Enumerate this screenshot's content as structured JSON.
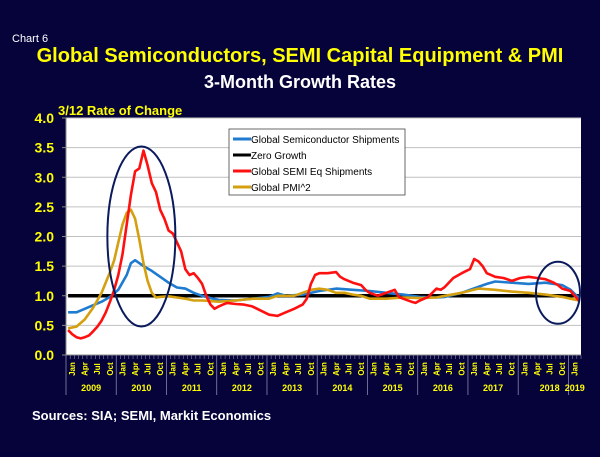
{
  "chart_label": "Chart 6",
  "source_note": "Sources: SIA; SEMI, Markit Economics",
  "chart_data": {
    "type": "line",
    "title": "Global Semiconductors, SEMI Capital Equipment & PMI",
    "subtitle": "3-Month Growth Rates",
    "ylabel": "3/12 Rate of Change",
    "xlabel": "",
    "ylim": [
      0,
      4.0
    ],
    "yticks": [
      "0.0",
      "0.5",
      "1.0",
      "1.5",
      "2.0",
      "2.5",
      "3.0",
      "3.5",
      "4.0"
    ],
    "grid": true,
    "legend_position": "top-center",
    "x_start": "Jan 2009",
    "x_end": "Mar 2019",
    "month_tick_labels": [
      "Jan",
      "Apr",
      "Jul",
      "Oct"
    ],
    "year_labels": [
      "2009",
      "2010",
      "2011",
      "2012",
      "2013",
      "2014",
      "2015",
      "2016",
      "2017",
      "2018",
      "2019"
    ],
    "series": [
      {
        "name": "Global Semiconductor Shipments",
        "color": "#1f7bd0",
        "points": [
          [
            0,
            0.72
          ],
          [
            2,
            0.72
          ],
          [
            4,
            0.78
          ],
          [
            6,
            0.84
          ],
          [
            8,
            0.9
          ],
          [
            10,
            0.98
          ],
          [
            12,
            1.1
          ],
          [
            14,
            1.35
          ],
          [
            15,
            1.55
          ],
          [
            16,
            1.6
          ],
          [
            18,
            1.5
          ],
          [
            20,
            1.42
          ],
          [
            22,
            1.32
          ],
          [
            24,
            1.22
          ],
          [
            26,
            1.14
          ],
          [
            28,
            1.12
          ],
          [
            30,
            1.05
          ],
          [
            32,
            1.0
          ],
          [
            34,
            0.96
          ],
          [
            36,
            0.93
          ],
          [
            40,
            0.92
          ],
          [
            44,
            0.95
          ],
          [
            48,
            0.98
          ],
          [
            50,
            1.04
          ],
          [
            52,
            1.0
          ],
          [
            56,
            1.02
          ],
          [
            60,
            1.08
          ],
          [
            64,
            1.12
          ],
          [
            68,
            1.1
          ],
          [
            72,
            1.08
          ],
          [
            76,
            1.05
          ],
          [
            80,
            1.02
          ],
          [
            84,
            0.98
          ],
          [
            88,
            0.97
          ],
          [
            90,
            0.98
          ],
          [
            94,
            1.05
          ],
          [
            96,
            1.1
          ],
          [
            100,
            1.2
          ],
          [
            102,
            1.24
          ],
          [
            106,
            1.22
          ],
          [
            110,
            1.2
          ],
          [
            114,
            1.22
          ],
          [
            118,
            1.18
          ],
          [
            120,
            1.1
          ],
          [
            122,
            0.96
          ]
        ]
      },
      {
        "name": "Zero Growth",
        "color": "#000000",
        "points": [
          [
            0,
            1.0
          ],
          [
            122,
            1.0
          ]
        ]
      },
      {
        "name": "Global SEMI Eq Shipments",
        "color": "#ff1010",
        "points": [
          [
            0,
            0.42
          ],
          [
            1,
            0.35
          ],
          [
            2,
            0.3
          ],
          [
            3,
            0.28
          ],
          [
            4,
            0.3
          ],
          [
            5,
            0.33
          ],
          [
            6,
            0.4
          ],
          [
            7,
            0.48
          ],
          [
            8,
            0.58
          ],
          [
            9,
            0.72
          ],
          [
            10,
            0.9
          ],
          [
            11,
            1.1
          ],
          [
            12,
            1.35
          ],
          [
            13,
            1.7
          ],
          [
            14,
            2.2
          ],
          [
            15,
            2.7
          ],
          [
            16,
            3.1
          ],
          [
            17,
            3.15
          ],
          [
            18,
            3.45
          ],
          [
            19,
            3.2
          ],
          [
            20,
            2.9
          ],
          [
            21,
            2.75
          ],
          [
            22,
            2.45
          ],
          [
            23,
            2.3
          ],
          [
            24,
            2.1
          ],
          [
            25,
            2.05
          ],
          [
            26,
            1.9
          ],
          [
            27,
            1.75
          ],
          [
            28,
            1.45
          ],
          [
            29,
            1.35
          ],
          [
            30,
            1.38
          ],
          [
            31,
            1.3
          ],
          [
            32,
            1.2
          ],
          [
            33,
            1.0
          ],
          [
            34,
            0.85
          ],
          [
            35,
            0.78
          ],
          [
            36,
            0.82
          ],
          [
            37,
            0.85
          ],
          [
            38,
            0.88
          ],
          [
            40,
            0.86
          ],
          [
            42,
            0.85
          ],
          [
            44,
            0.82
          ],
          [
            46,
            0.75
          ],
          [
            48,
            0.68
          ],
          [
            50,
            0.66
          ],
          [
            52,
            0.72
          ],
          [
            54,
            0.78
          ],
          [
            56,
            0.85
          ],
          [
            57,
            0.95
          ],
          [
            58,
            1.2
          ],
          [
            59,
            1.35
          ],
          [
            60,
            1.38
          ],
          [
            62,
            1.38
          ],
          [
            64,
            1.4
          ],
          [
            65,
            1.32
          ],
          [
            66,
            1.28
          ],
          [
            68,
            1.22
          ],
          [
            70,
            1.18
          ],
          [
            71,
            1.1
          ],
          [
            72,
            1.05
          ],
          [
            74,
            1.0
          ],
          [
            76,
            1.05
          ],
          [
            78,
            1.1
          ],
          [
            79,
            0.98
          ],
          [
            80,
            0.95
          ],
          [
            82,
            0.9
          ],
          [
            83,
            0.88
          ],
          [
            84,
            0.92
          ],
          [
            86,
            0.98
          ],
          [
            88,
            1.12
          ],
          [
            89,
            1.1
          ],
          [
            90,
            1.15
          ],
          [
            92,
            1.3
          ],
          [
            94,
            1.38
          ],
          [
            96,
            1.45
          ],
          [
            97,
            1.62
          ],
          [
            98,
            1.58
          ],
          [
            99,
            1.5
          ],
          [
            100,
            1.38
          ],
          [
            102,
            1.32
          ],
          [
            104,
            1.3
          ],
          [
            106,
            1.25
          ],
          [
            108,
            1.3
          ],
          [
            110,
            1.32
          ],
          [
            112,
            1.3
          ],
          [
            114,
            1.28
          ],
          [
            116,
            1.22
          ],
          [
            117,
            1.18
          ],
          [
            118,
            1.12
          ],
          [
            120,
            1.08
          ],
          [
            121,
            1.0
          ],
          [
            122,
            0.92
          ]
        ]
      },
      {
        "name": "Global PMI^2",
        "color": "#d4a010",
        "points": [
          [
            0,
            0.45
          ],
          [
            2,
            0.48
          ],
          [
            4,
            0.6
          ],
          [
            6,
            0.8
          ],
          [
            8,
            1.05
          ],
          [
            10,
            1.4
          ],
          [
            11,
            1.6
          ],
          [
            12,
            1.9
          ],
          [
            13,
            2.2
          ],
          [
            14,
            2.4
          ],
          [
            15,
            2.45
          ],
          [
            16,
            2.3
          ],
          [
            17,
            1.95
          ],
          [
            18,
            1.55
          ],
          [
            19,
            1.25
          ],
          [
            20,
            1.05
          ],
          [
            21,
            0.97
          ],
          [
            22,
            0.98
          ],
          [
            24,
            0.99
          ],
          [
            26,
            0.97
          ],
          [
            28,
            0.95
          ],
          [
            30,
            0.92
          ],
          [
            32,
            0.92
          ],
          [
            36,
            0.9
          ],
          [
            40,
            0.92
          ],
          [
            44,
            0.95
          ],
          [
            48,
            0.95
          ],
          [
            50,
            1.0
          ],
          [
            54,
            1.0
          ],
          [
            56,
            1.05
          ],
          [
            58,
            1.1
          ],
          [
            60,
            1.12
          ],
          [
            62,
            1.1
          ],
          [
            64,
            1.05
          ],
          [
            66,
            1.05
          ],
          [
            68,
            1.02
          ],
          [
            70,
            1.0
          ],
          [
            72,
            0.95
          ],
          [
            76,
            0.95
          ],
          [
            80,
            0.97
          ],
          [
            84,
            0.96
          ],
          [
            88,
            0.97
          ],
          [
            90,
            1.0
          ],
          [
            94,
            1.05
          ],
          [
            98,
            1.12
          ],
          [
            102,
            1.1
          ],
          [
            106,
            1.07
          ],
          [
            110,
            1.05
          ],
          [
            114,
            1.02
          ],
          [
            118,
            0.98
          ],
          [
            120,
            0.95
          ],
          [
            122,
            0.92
          ]
        ]
      }
    ],
    "annotations": [
      {
        "type": "ellipse",
        "label": "2010 highlight",
        "x_center_month": 17.5,
        "y_center": 2.0
      },
      {
        "type": "ellipse",
        "label": "2018-2019 highlight",
        "x_center_month": 117,
        "y_center": 1.05
      }
    ]
  }
}
